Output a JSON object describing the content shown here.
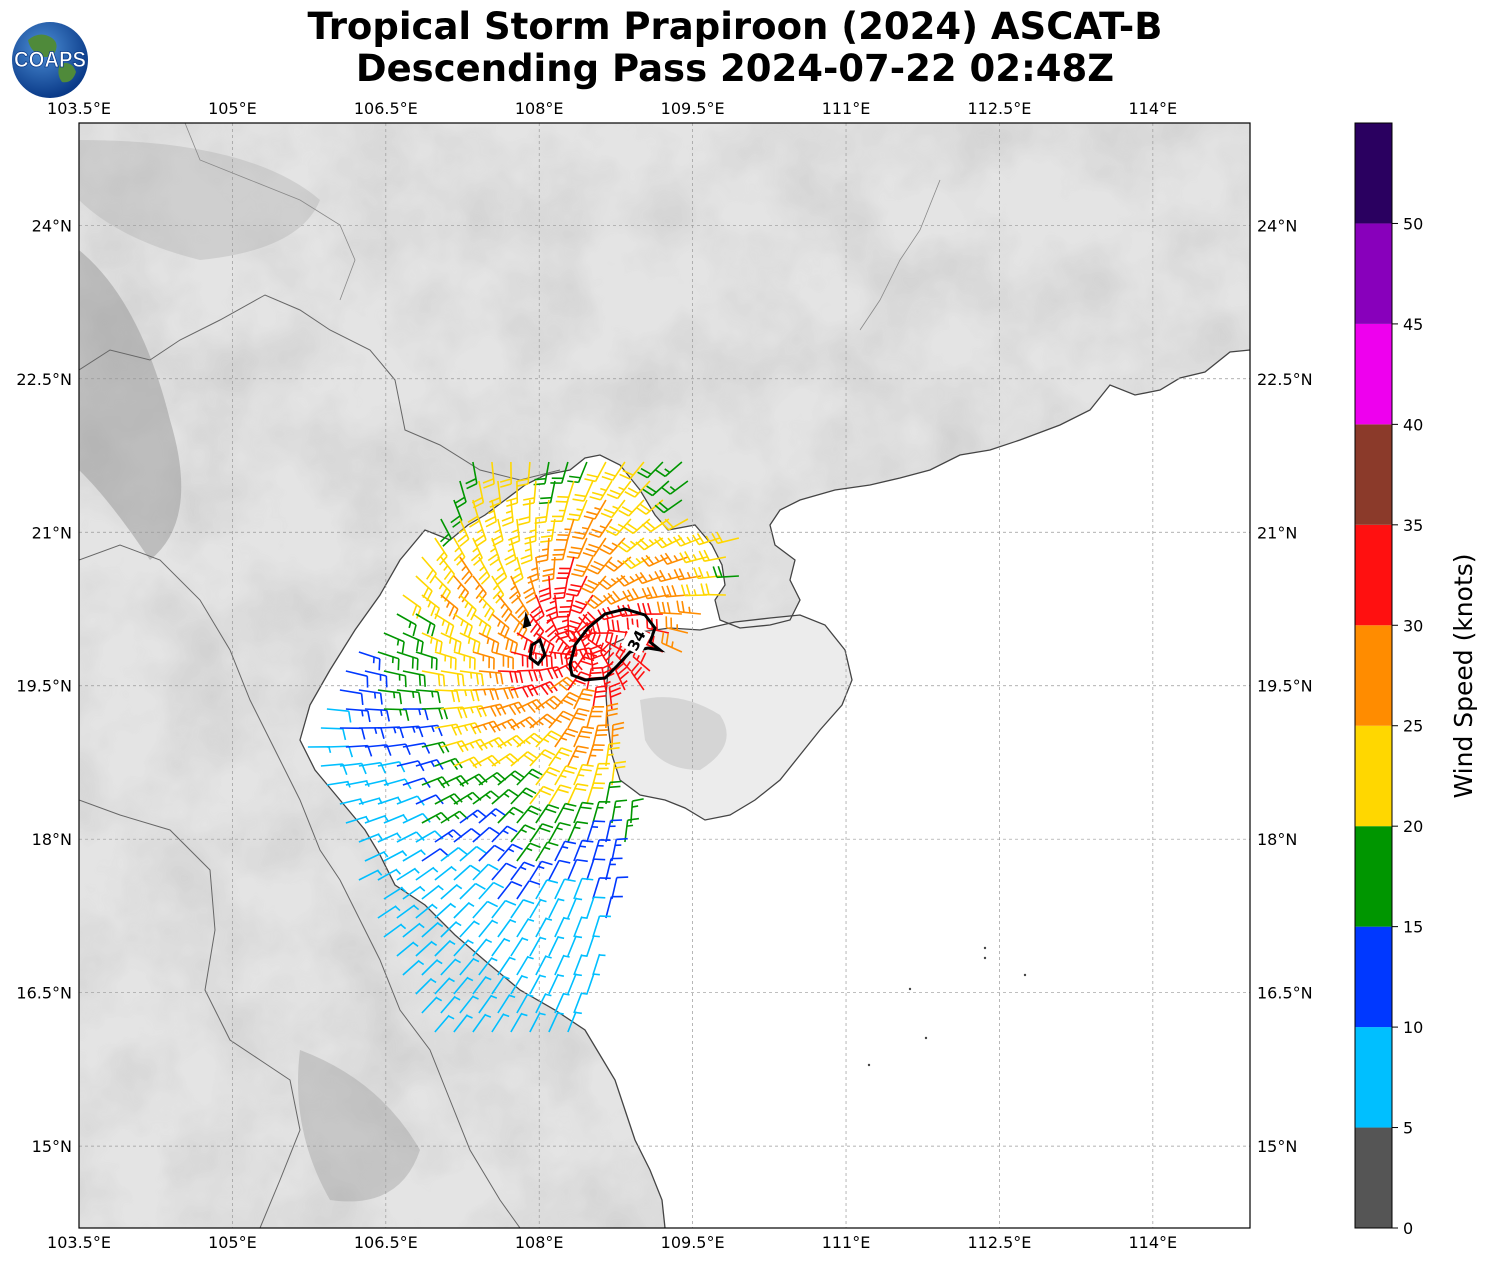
{
  "title": {
    "line1": "Tropical Storm Prapiroon (2024) ASCAT-B",
    "line2": "Descending Pass 2024-07-22 02:48Z"
  },
  "logo": {
    "text": "COAPS",
    "icon": "globe-logo"
  },
  "map": {
    "lon_labels": [
      "103.5°E",
      "105°E",
      "106.5°E",
      "108°E",
      "109.5°E",
      "111°E",
      "112.5°E",
      "114°E"
    ],
    "lon_values": [
      103.5,
      105,
      106.5,
      108,
      109.5,
      111,
      112.5,
      114
    ],
    "lat_labels": [
      "24°N",
      "22.5°N",
      "21°N",
      "19.5°N",
      "18°N",
      "16.5°N",
      "15°N"
    ],
    "lat_values": [
      24,
      22.5,
      21,
      19.5,
      18,
      16.5,
      15
    ],
    "extent": {
      "lon_min": 103.5,
      "lon_max": 114.95,
      "lat_min": 14.2,
      "lat_max": 25.0
    },
    "contour_label": "34",
    "contour_kt": 34
  },
  "colorbar": {
    "label": "Wind Speed (knots)",
    "ticks": [
      "0",
      "5",
      "10",
      "15",
      "20",
      "25",
      "30",
      "35",
      "40",
      "45",
      "50"
    ],
    "tick_values": [
      0,
      5,
      10,
      15,
      20,
      25,
      30,
      35,
      40,
      45,
      50
    ],
    "max": 55,
    "colors": [
      "#555555",
      "#00bfff",
      "#0038ff",
      "#009600",
      "#ffd700",
      "#ff8c00",
      "#ff1010",
      "#8b3a2a",
      "#ee00ee",
      "#8800bb",
      "#2a0060"
    ]
  },
  "colors": {
    "land_dark": "#9a9a9a",
    "land_light": "#f2f2f2",
    "coast": "#444444",
    "grid": "#999999"
  },
  "chart_data": {
    "type": "wind-barbs",
    "title": "Tropical Storm Prapiroon (2024) ASCAT-B Descending Pass 2024-07-22 02:48Z",
    "units": "knots",
    "storm_center_approx": {
      "lon": 108.4,
      "lat": 19.9
    },
    "max_wind_kt_approx": 37,
    "gale_contour_kt": 34,
    "swath_lon_range": [
      105.7,
      109.7
    ],
    "swath_lat_range": [
      16.0,
      21.7
    ]
  }
}
